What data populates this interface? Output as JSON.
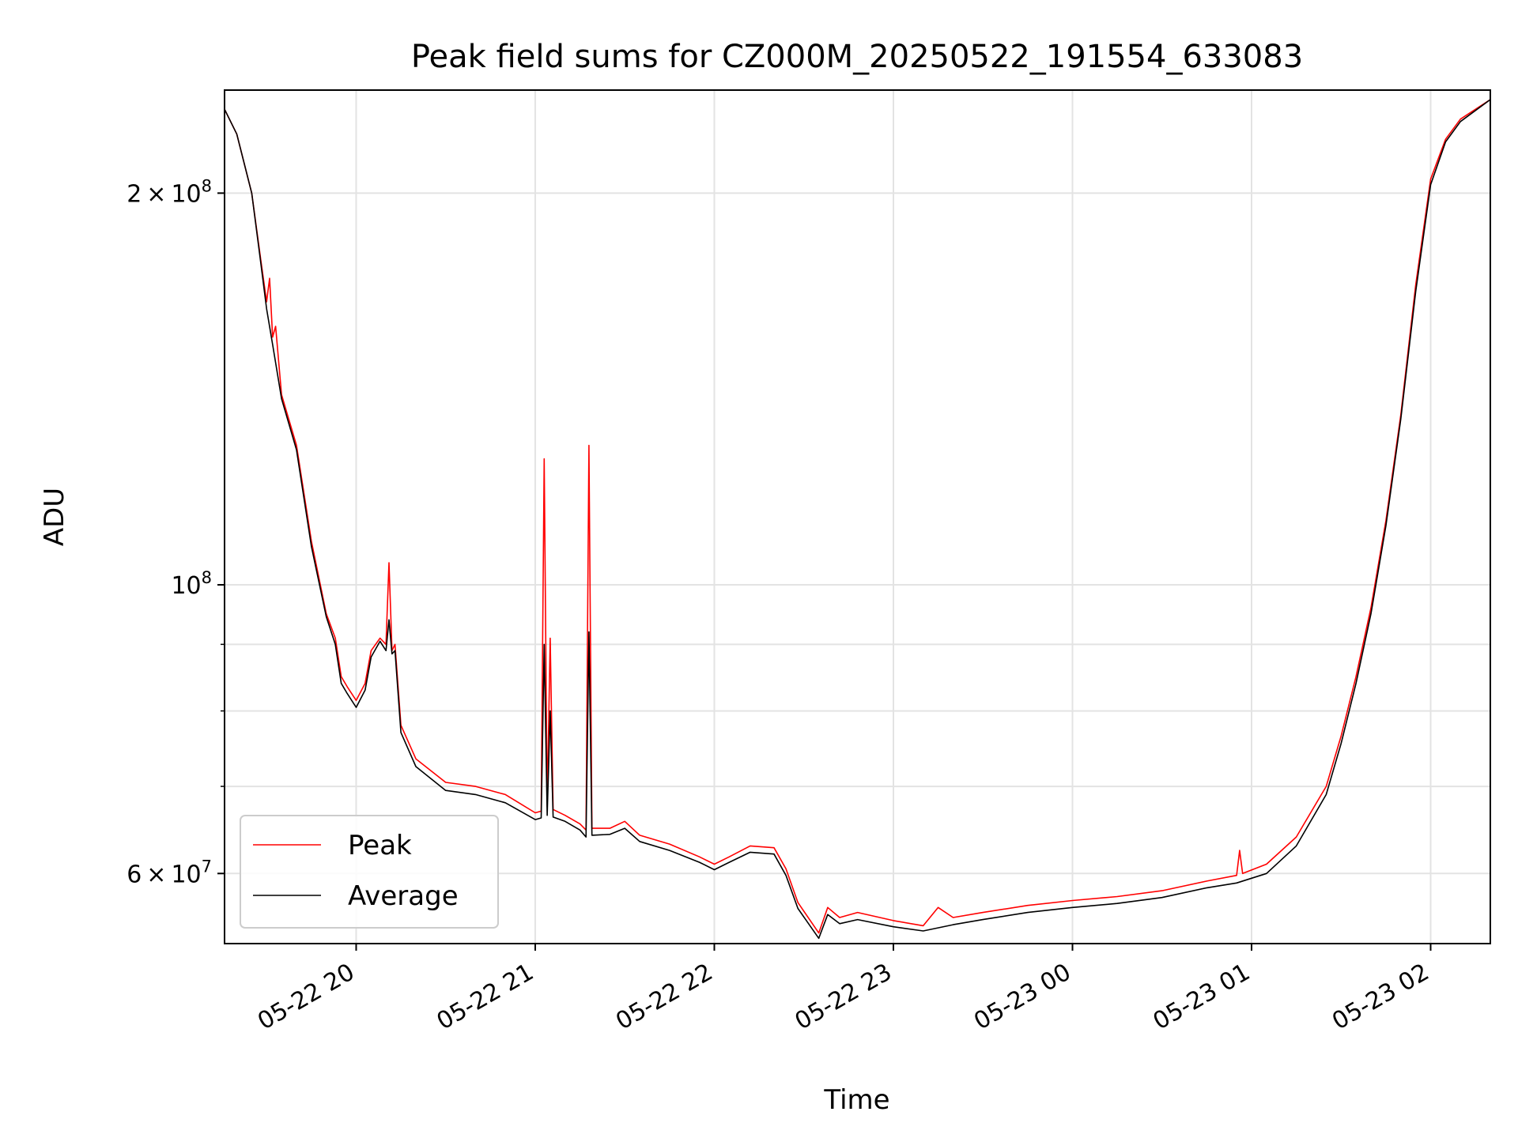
{
  "chart_data": {
    "type": "line",
    "title": "Peak field sums for CZ000M_20250522_191554_633083",
    "xlabel": "Time",
    "ylabel": "ADU",
    "yscale": "log",
    "grid": true,
    "legend_position": "lower-left",
    "xlim": [
      "2025-05-22 19:15:54",
      "2025-05-23 02:20:00"
    ],
    "ylim": [
      53000000,
      240000000
    ],
    "x_ticks": [
      {
        "t": "2025-05-22 20:00",
        "label": "05-22 20"
      },
      {
        "t": "2025-05-22 21:00",
        "label": "05-22 21"
      },
      {
        "t": "2025-05-22 22:00",
        "label": "05-22 22"
      },
      {
        "t": "2025-05-22 23:00",
        "label": "05-22 23"
      },
      {
        "t": "2025-05-23 00:00",
        "label": "05-23 00"
      },
      {
        "t": "2025-05-23 01:00",
        "label": "05-23 01"
      },
      {
        "t": "2025-05-23 02:00",
        "label": "05-23 02"
      }
    ],
    "y_major_ticks": [
      {
        "v": 60000000,
        "base": "6",
        "exp": "7"
      },
      {
        "v": 100000000,
        "base": "",
        "exp": "8"
      },
      {
        "v": 200000000,
        "base": "2",
        "exp": "8"
      }
    ],
    "y_minor_ticks": [
      70000000,
      80000000,
      90000000
    ],
    "series": [
      {
        "name": "Peak",
        "color": "#ff0000",
        "points": [
          [
            "2025-05-22 19:15:54",
            232000000
          ],
          [
            "2025-05-22 19:20",
            222000000
          ],
          [
            "2025-05-22 19:25",
            200000000
          ],
          [
            "2025-05-22 19:28",
            178000000
          ],
          [
            "2025-05-22 19:30",
            165000000
          ],
          [
            "2025-05-22 19:31",
            172000000
          ],
          [
            "2025-05-22 19:32",
            155000000
          ],
          [
            "2025-05-22 19:33",
            158000000
          ],
          [
            "2025-05-22 19:35",
            140000000
          ],
          [
            "2025-05-22 19:40",
            128000000
          ],
          [
            "2025-05-22 19:45",
            108000000
          ],
          [
            "2025-05-22 19:50",
            95000000
          ],
          [
            "2025-05-22 19:53",
            91000000
          ],
          [
            "2025-05-22 19:55",
            85000000
          ],
          [
            "2025-05-22 19:57",
            83500000
          ],
          [
            "2025-05-22 20:00",
            81500000
          ],
          [
            "2025-05-22 20:03",
            84000000
          ],
          [
            "2025-05-22 20:05",
            89000000
          ],
          [
            "2025-05-22 20:08",
            91000000
          ],
          [
            "2025-05-22 20:10",
            90000000
          ],
          [
            "2025-05-22 20:11",
            104000000
          ],
          [
            "2025-05-22 20:12",
            89000000
          ],
          [
            "2025-05-22 20:13",
            90000000
          ],
          [
            "2025-05-22 20:15",
            78000000
          ],
          [
            "2025-05-22 20:20",
            73500000
          ],
          [
            "2025-05-22 20:30",
            70500000
          ],
          [
            "2025-05-22 20:40",
            70000000
          ],
          [
            "2025-05-22 20:50",
            69000000
          ],
          [
            "2025-05-22 21:00",
            66800000
          ],
          [
            "2025-05-22 21:02",
            67000000
          ],
          [
            "2025-05-22 21:03",
            125000000
          ],
          [
            "2025-05-22 21:04",
            67500000
          ],
          [
            "2025-05-22 21:05",
            91000000
          ],
          [
            "2025-05-22 21:06",
            67200000
          ],
          [
            "2025-05-22 21:10",
            66500000
          ],
          [
            "2025-05-22 21:15",
            65500000
          ],
          [
            "2025-05-22 21:17",
            64800000
          ],
          [
            "2025-05-22 21:18",
            128000000
          ],
          [
            "2025-05-22 21:19",
            65000000
          ],
          [
            "2025-05-22 21:25",
            65000000
          ],
          [
            "2025-05-22 21:30",
            65800000
          ],
          [
            "2025-05-22 21:35",
            64200000
          ],
          [
            "2025-05-22 21:45",
            63200000
          ],
          [
            "2025-05-22 21:55",
            61800000
          ],
          [
            "2025-05-22 22:00",
            61000000
          ],
          [
            "2025-05-22 22:05",
            61800000
          ],
          [
            "2025-05-22 22:12",
            63000000
          ],
          [
            "2025-05-22 22:20",
            62800000
          ],
          [
            "2025-05-22 22:24",
            60500000
          ],
          [
            "2025-05-22 22:28",
            57000000
          ],
          [
            "2025-05-22 22:35",
            54000000
          ],
          [
            "2025-05-22 22:38",
            56500000
          ],
          [
            "2025-05-22 22:42",
            55500000
          ],
          [
            "2025-05-22 22:48",
            56000000
          ],
          [
            "2025-05-22 23:00",
            55200000
          ],
          [
            "2025-05-22 23:10",
            54700000
          ],
          [
            "2025-05-22 23:15",
            56500000
          ],
          [
            "2025-05-22 23:20",
            55500000
          ],
          [
            "2025-05-22 23:30",
            56000000
          ],
          [
            "2025-05-22 23:45",
            56700000
          ],
          [
            "2025-05-23 00:00",
            57200000
          ],
          [
            "2025-05-23 00:15",
            57600000
          ],
          [
            "2025-05-23 00:30",
            58200000
          ],
          [
            "2025-05-23 00:45",
            59200000
          ],
          [
            "2025-05-23 00:55",
            59800000
          ],
          [
            "2025-05-23 00:56",
            62500000
          ],
          [
            "2025-05-23 00:57",
            60000000
          ],
          [
            "2025-05-23 01:05",
            61000000
          ],
          [
            "2025-05-23 01:15",
            64000000
          ],
          [
            "2025-05-23 01:25",
            70000000
          ],
          [
            "2025-05-23 01:30",
            76500000
          ],
          [
            "2025-05-23 01:35",
            85000000
          ],
          [
            "2025-05-23 01:40",
            96000000
          ],
          [
            "2025-05-23 01:45",
            112000000
          ],
          [
            "2025-05-23 01:50",
            135000000
          ],
          [
            "2025-05-23 01:55",
            170000000
          ],
          [
            "2025-05-23 02:00",
            205000000
          ],
          [
            "2025-05-23 02:05",
            220000000
          ],
          [
            "2025-05-23 02:10",
            228000000
          ],
          [
            "2025-05-23 02:20",
            236000000
          ]
        ]
      },
      {
        "name": "Average",
        "color": "#000000",
        "points": [
          [
            "2025-05-22 19:15:54",
            232000000
          ],
          [
            "2025-05-22 19:20",
            222000000
          ],
          [
            "2025-05-22 19:25",
            200000000
          ],
          [
            "2025-05-22 19:28",
            177000000
          ],
          [
            "2025-05-22 19:30",
            163000000
          ],
          [
            "2025-05-22 19:32",
            153000000
          ],
          [
            "2025-05-22 19:35",
            139000000
          ],
          [
            "2025-05-22 19:40",
            127000000
          ],
          [
            "2025-05-22 19:45",
            107000000
          ],
          [
            "2025-05-22 19:50",
            94500000
          ],
          [
            "2025-05-22 19:53",
            90000000
          ],
          [
            "2025-05-22 19:55",
            84000000
          ],
          [
            "2025-05-22 19:57",
            82500000
          ],
          [
            "2025-05-22 20:00",
            80500000
          ],
          [
            "2025-05-22 20:03",
            83000000
          ],
          [
            "2025-05-22 20:05",
            88000000
          ],
          [
            "2025-05-22 20:08",
            90500000
          ],
          [
            "2025-05-22 20:10",
            89000000
          ],
          [
            "2025-05-22 20:11",
            94000000
          ],
          [
            "2025-05-22 20:12",
            88500000
          ],
          [
            "2025-05-22 20:13",
            89000000
          ],
          [
            "2025-05-22 20:15",
            77000000
          ],
          [
            "2025-05-22 20:20",
            72500000
          ],
          [
            "2025-05-22 20:30",
            69500000
          ],
          [
            "2025-05-22 20:40",
            69000000
          ],
          [
            "2025-05-22 20:50",
            68000000
          ],
          [
            "2025-05-22 21:00",
            66000000
          ],
          [
            "2025-05-22 21:02",
            66200000
          ],
          [
            "2025-05-22 21:03",
            90000000
          ],
          [
            "2025-05-22 21:04",
            66500000
          ],
          [
            "2025-05-22 21:05",
            80000000
          ],
          [
            "2025-05-22 21:06",
            66300000
          ],
          [
            "2025-05-22 21:10",
            65800000
          ],
          [
            "2025-05-22 21:15",
            64800000
          ],
          [
            "2025-05-22 21:17",
            64000000
          ],
          [
            "2025-05-22 21:18",
            92000000
          ],
          [
            "2025-05-22 21:19",
            64200000
          ],
          [
            "2025-05-22 21:25",
            64300000
          ],
          [
            "2025-05-22 21:30",
            65000000
          ],
          [
            "2025-05-22 21:35",
            63500000
          ],
          [
            "2025-05-22 21:45",
            62500000
          ],
          [
            "2025-05-22 21:55",
            61200000
          ],
          [
            "2025-05-22 22:00",
            60400000
          ],
          [
            "2025-05-22 22:05",
            61200000
          ],
          [
            "2025-05-22 22:12",
            62300000
          ],
          [
            "2025-05-22 22:20",
            62100000
          ],
          [
            "2025-05-22 22:24",
            59800000
          ],
          [
            "2025-05-22 22:28",
            56400000
          ],
          [
            "2025-05-22 22:35",
            53500000
          ],
          [
            "2025-05-22 22:38",
            55800000
          ],
          [
            "2025-05-22 22:42",
            54900000
          ],
          [
            "2025-05-22 22:48",
            55300000
          ],
          [
            "2025-05-22 23:00",
            54600000
          ],
          [
            "2025-05-22 23:10",
            54200000
          ],
          [
            "2025-05-22 23:20",
            54800000
          ],
          [
            "2025-05-22 23:30",
            55300000
          ],
          [
            "2025-05-22 23:45",
            56000000
          ],
          [
            "2025-05-23 00:00",
            56500000
          ],
          [
            "2025-05-23 00:15",
            56900000
          ],
          [
            "2025-05-23 00:30",
            57500000
          ],
          [
            "2025-05-23 00:45",
            58500000
          ],
          [
            "2025-05-23 00:55",
            59000000
          ],
          [
            "2025-05-23 01:05",
            60000000
          ],
          [
            "2025-05-23 01:15",
            63000000
          ],
          [
            "2025-05-23 01:25",
            69000000
          ],
          [
            "2025-05-23 01:30",
            75500000
          ],
          [
            "2025-05-23 01:35",
            84000000
          ],
          [
            "2025-05-23 01:40",
            95000000
          ],
          [
            "2025-05-23 01:45",
            111000000
          ],
          [
            "2025-05-23 01:50",
            134000000
          ],
          [
            "2025-05-23 01:55",
            168000000
          ],
          [
            "2025-05-23 02:00",
            203000000
          ],
          [
            "2025-05-23 02:05",
            219000000
          ],
          [
            "2025-05-23 02:10",
            227000000
          ],
          [
            "2025-05-23 02:20",
            236000000
          ]
        ]
      }
    ]
  }
}
